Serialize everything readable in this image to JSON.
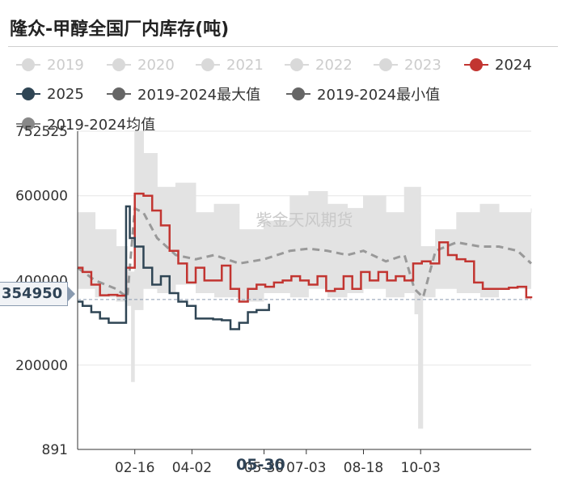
{
  "title": "隆众-甲醇全国厂内库存(吨)",
  "watermark": "紫金天风期货",
  "legend": [
    {
      "label": "2019",
      "color": "#cccccc",
      "active": false
    },
    {
      "label": "2020",
      "color": "#cccccc",
      "active": false
    },
    {
      "label": "2021",
      "color": "#cccccc",
      "active": false
    },
    {
      "label": "2022",
      "color": "#cccccc",
      "active": false
    },
    {
      "label": "2023",
      "color": "#cccccc",
      "active": false
    },
    {
      "label": "2024",
      "color": "#c23531",
      "active": true
    },
    {
      "label": "2025",
      "color": "#2f4554",
      "active": true
    },
    {
      "label": "2019-2024最大值",
      "color": "#666666",
      "active": true
    },
    {
      "label": "2019-2024最小值",
      "color": "#666666",
      "active": true
    },
    {
      "label": "2019-2024均值",
      "color": "#888888",
      "active": true
    }
  ],
  "cursor": {
    "y_value": "354950",
    "x_value": "05-30"
  },
  "chart_data": {
    "type": "line",
    "ylim": [
      891,
      752525
    ],
    "y_ticks": [
      "752525",
      "600000",
      "400000",
      "200000",
      "891"
    ],
    "x_ticks": [
      "02-16",
      "04-02",
      "05-30",
      "07-03",
      "08-18",
      "10-03"
    ],
    "x_range": [
      "01-01",
      "12-31"
    ],
    "grid": true,
    "legend_position": "top",
    "series": [
      {
        "name": "2024",
        "color": "#c23531",
        "style": "solid",
        "x": [
          "01-01",
          "01-05",
          "01-12",
          "01-19",
          "01-26",
          "02-02",
          "02-09",
          "02-16",
          "02-23",
          "03-01",
          "03-08",
          "03-15",
          "03-22",
          "03-29",
          "04-05",
          "04-12",
          "04-19",
          "04-26",
          "05-03",
          "05-10",
          "05-17",
          "05-24",
          "05-31",
          "06-07",
          "06-14",
          "06-21",
          "06-28",
          "07-05",
          "07-12",
          "07-19",
          "07-26",
          "08-02",
          "08-09",
          "08-16",
          "08-23",
          "08-30",
          "09-06",
          "09-13",
          "09-20",
          "09-27",
          "10-04",
          "10-11",
          "10-18",
          "10-25",
          "11-01",
          "11-08",
          "11-15",
          "11-22",
          "11-29",
          "12-06",
          "12-13",
          "12-20",
          "12-27",
          "12-31"
        ],
        "y": [
          430000,
          420000,
          390000,
          365000,
          366000,
          364000,
          430000,
          605000,
          600000,
          565000,
          530000,
          470000,
          440000,
          395000,
          430000,
          400000,
          400000,
          435000,
          380000,
          350000,
          380000,
          390000,
          385000,
          395000,
          400000,
          410000,
          400000,
          390000,
          410000,
          375000,
          380000,
          410000,
          380000,
          420000,
          400000,
          420000,
          400000,
          410000,
          400000,
          440000,
          445000,
          440000,
          490000,
          460000,
          450000,
          445000,
          395000,
          380000,
          380000,
          380000,
          383000,
          385000,
          360000,
          358000
        ]
      },
      {
        "name": "2025",
        "color": "#2f4554",
        "style": "solid",
        "x": [
          "01-01",
          "01-05",
          "01-12",
          "01-19",
          "01-26",
          "02-02",
          "02-09",
          "02-12",
          "02-16",
          "02-23",
          "03-01",
          "03-08",
          "03-15",
          "03-22",
          "03-29",
          "04-05",
          "04-12",
          "04-19",
          "04-26",
          "05-03",
          "05-10",
          "05-17",
          "05-24",
          "05-31",
          "06-03"
        ],
        "y": [
          350000,
          340000,
          325000,
          310000,
          300000,
          300000,
          575000,
          500000,
          480000,
          430000,
          390000,
          410000,
          370000,
          350000,
          340000,
          310000,
          310000,
          308000,
          306000,
          285000,
          300000,
          325000,
          330000,
          330000,
          345000
        ]
      },
      {
        "name": "2019-2024最大值",
        "color": "#dddddd",
        "style": "band-top",
        "x": [
          "01-01",
          "01-15",
          "02-01",
          "02-10",
          "02-16",
          "02-23",
          "03-05",
          "03-20",
          "04-05",
          "04-20",
          "05-10",
          "05-30",
          "06-20",
          "07-05",
          "07-20",
          "08-05",
          "08-18",
          "09-05",
          "09-20",
          "10-03",
          "10-15",
          "11-01",
          "11-20",
          "12-05",
          "12-31"
        ],
        "y": [
          560000,
          520000,
          480000,
          420000,
          752525,
          700000,
          620000,
          630000,
          560000,
          580000,
          520000,
          540000,
          600000,
          610000,
          580000,
          570000,
          600000,
          560000,
          620000,
          480000,
          520000,
          560000,
          580000,
          560000,
          570000
        ]
      },
      {
        "name": "2019-2024最小值",
        "color": "#dddddd",
        "style": "band-bottom",
        "x": [
          "01-01",
          "01-15",
          "02-01",
          "02-10",
          "02-13",
          "02-16",
          "02-23",
          "03-05",
          "03-20",
          "04-05",
          "04-20",
          "05-10",
          "05-30",
          "06-20",
          "07-05",
          "07-20",
          "08-05",
          "08-18",
          "09-05",
          "09-20",
          "09-28",
          "10-01",
          "10-05",
          "10-15",
          "11-01",
          "11-20",
          "12-05",
          "12-31"
        ],
        "y": [
          380000,
          360000,
          350000,
          340000,
          160000,
          330000,
          380000,
          370000,
          390000,
          370000,
          360000,
          350000,
          370000,
          360000,
          380000,
          360000,
          370000,
          380000,
          360000,
          370000,
          320000,
          50000,
          360000,
          380000,
          370000,
          360000,
          380000,
          370000
        ]
      },
      {
        "name": "2019-2024均值",
        "color": "#999999",
        "style": "dashed",
        "x": [
          "01-01",
          "01-15",
          "02-01",
          "02-10",
          "02-16",
          "02-23",
          "03-05",
          "03-20",
          "04-05",
          "04-20",
          "05-10",
          "05-30",
          "06-20",
          "07-05",
          "07-20",
          "08-05",
          "08-18",
          "09-05",
          "09-20",
          "09-28",
          "10-05",
          "10-15",
          "11-01",
          "11-20",
          "12-05",
          "12-20",
          "12-31"
        ],
        "y": [
          430000,
          400000,
          380000,
          360000,
          570000,
          560000,
          500000,
          460000,
          450000,
          460000,
          440000,
          450000,
          470000,
          475000,
          470000,
          460000,
          470000,
          445000,
          460000,
          380000,
          360000,
          470000,
          490000,
          480000,
          480000,
          470000,
          440000
        ]
      }
    ]
  }
}
